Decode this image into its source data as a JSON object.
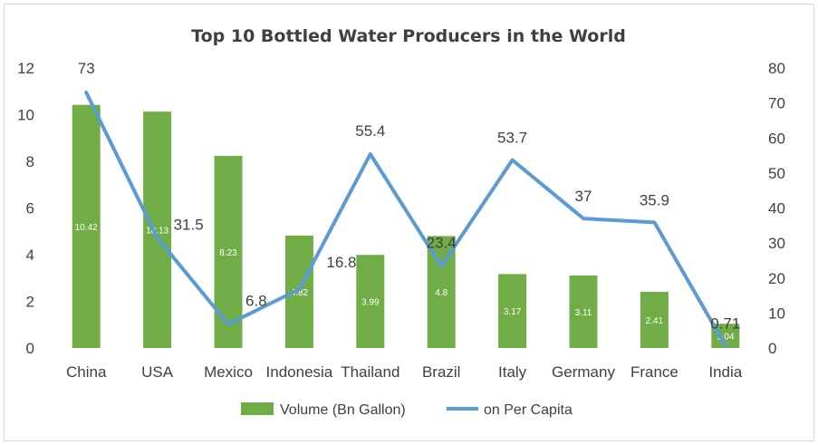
{
  "chart_data": {
    "type": "bar",
    "title": "Top 10 Bottled Water Producers in the World",
    "categories": [
      "China",
      "USA",
      "Mexico",
      "Indonesia",
      "Thailand",
      "Brazil",
      "Italy",
      "Germany",
      "France",
      "India"
    ],
    "series": [
      {
        "name": "Volume (Bn Gallon)",
        "type": "bar",
        "axis": "left",
        "color": "#70AD47",
        "values": [
          10.42,
          10.13,
          8.23,
          4.82,
          3.99,
          4.8,
          3.17,
          3.11,
          2.41,
          1.04
        ],
        "labels": [
          "10.42",
          "10.13",
          "8.23",
          "4.82",
          "3.99",
          "4.8",
          "3.17",
          "3.11",
          "2.41",
          "1.04"
        ]
      },
      {
        "name": "on Per Capita",
        "type": "line",
        "axis": "right",
        "color": "#5B9BD5",
        "values": [
          73,
          31.5,
          6.8,
          16.8,
          55.4,
          23.4,
          53.7,
          37,
          35.9,
          0.71
        ],
        "labels": [
          "73",
          "31.5",
          "6.8",
          "16.8",
          "55.4",
          "23.4",
          "53.7",
          "37",
          "35.9",
          "0.71"
        ]
      }
    ],
    "y_left": {
      "min": 0,
      "max": 12,
      "ticks": [
        "0",
        "2",
        "4",
        "6",
        "8",
        "10",
        "12"
      ]
    },
    "y_right": {
      "min": 0,
      "max": 80,
      "ticks": [
        "0",
        "10",
        "20",
        "30",
        "40",
        "50",
        "60",
        "70",
        "80"
      ]
    },
    "grid": false,
    "legend_position": "bottom"
  }
}
